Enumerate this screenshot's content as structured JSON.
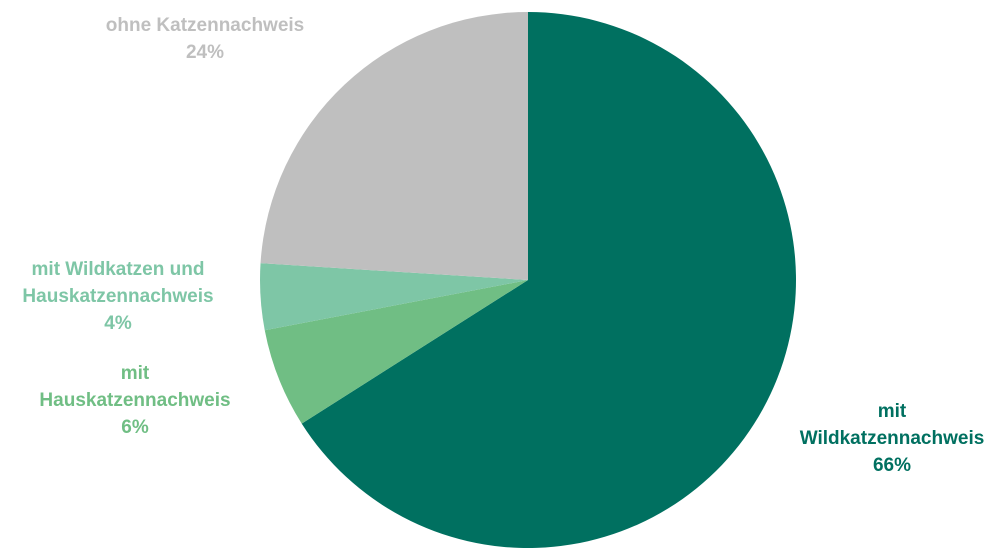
{
  "chart_data": {
    "type": "pie",
    "start_angle_deg": 0,
    "direction": "clockwise",
    "slices": [
      {
        "label_lines": [
          "mit",
          "Wildkatzennachweis"
        ],
        "percent_label": "66%",
        "value": 66,
        "color": "#007060",
        "label_color": "#007060"
      },
      {
        "label_lines": [
          "mit",
          "Hauskatzennachweis"
        ],
        "percent_label": "6%",
        "value": 6,
        "color": "#70be84",
        "label_color": "#70be84"
      },
      {
        "label_lines": [
          "mit Wildkatzen und",
          "Hauskatzennachweis"
        ],
        "percent_label": "4%",
        "value": 4,
        "color": "#7ec6a6",
        "label_color": "#7ec6a6"
      },
      {
        "label_lines": [
          "ohne Katzennachweis"
        ],
        "percent_label": "24%",
        "value": 24,
        "color": "#bfbfbf",
        "label_color": "#bfbfbf"
      }
    ]
  }
}
